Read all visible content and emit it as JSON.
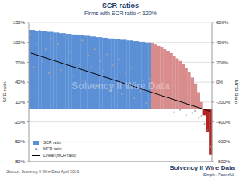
{
  "chart_data": {
    "type": "bar",
    "title": "SCR ratios",
    "subtitle": "Firms with SCR ratio < 120%",
    "y_label": "SCR ratio",
    "y2_label": "MCR Ratio",
    "source": "Source: Solvency II Wire Data April 2016",
    "watermark": "Solvency II Wire Data",
    "logo": {
      "name": "Solvency II Wire Data",
      "tagline": "Simple. Powerful."
    },
    "categories": [
      null,
      null,
      null,
      null,
      null,
      null,
      null,
      null,
      null,
      null,
      null,
      null,
      null,
      null,
      null,
      null,
      null,
      null,
      null,
      null,
      null,
      null,
      null,
      null,
      null,
      null,
      null,
      null,
      null,
      null,
      null,
      null,
      null,
      null,
      null,
      null,
      null,
      null,
      null,
      null,
      null,
      null,
      null,
      null,
      null,
      null,
      null,
      null,
      null,
      null,
      null,
      null,
      null,
      null,
      null,
      null,
      null,
      null,
      null,
      null
    ],
    "ylim": [
      -80,
      130
    ],
    "yticks": [
      {
        "value": -80,
        "label": "-80%"
      },
      {
        "value": -50,
        "label": "-50%"
      },
      {
        "value": -20,
        "label": "-20%"
      },
      {
        "value": 10,
        "label": "10%"
      },
      {
        "value": 40,
        "label": "40%"
      },
      {
        "value": 70,
        "label": "70%"
      },
      {
        "value": 100,
        "label": "100%"
      },
      {
        "value": 130,
        "label": "130%"
      }
    ],
    "y2lim": [
      -800,
      600
    ],
    "y2ticks": [
      {
        "value": -800,
        "label": "-800%"
      },
      {
        "value": -600,
        "label": "-600%"
      },
      {
        "value": -400,
        "label": "-400%"
      },
      {
        "value": -200,
        "label": "-200%"
      },
      {
        "value": 0,
        "label": "0%"
      },
      {
        "value": 200,
        "label": "200%"
      },
      {
        "value": 400,
        "label": "400%"
      },
      {
        "value": 600,
        "label": "600%"
      }
    ],
    "grid": true,
    "legend": "lower left",
    "series": [
      {
        "name": "SCR ratio",
        "type": "bar",
        "color": "#5b8fd6",
        "colors": [
          "#5b8fd6",
          "#5b8fd6",
          "#5b8fd6",
          "#5b8fd6",
          "#5b8fd6",
          "#5b8fd6",
          "#5b8fd6",
          "#5b8fd6",
          "#5b8fd6",
          "#5b8fd6",
          "#5b8fd6",
          "#5b8fd6",
          "#5b8fd6",
          "#5b8fd6",
          "#5b8fd6",
          "#5b8fd6",
          "#5b8fd6",
          "#5b8fd6",
          "#5b8fd6",
          "#5b8fd6",
          "#5b8fd6",
          "#5b8fd6",
          "#5b8fd6",
          "#5b8fd6",
          "#5b8fd6",
          "#5b8fd6",
          "#5b8fd6",
          "#5b8fd6",
          "#5b8fd6",
          "#5b8fd6",
          "#5b8fd6",
          "#5b8fd6",
          "#5b8fd6",
          "#5b8fd6",
          "#5b8fd6",
          "#5b8fd6",
          "#5b8fd6",
          "#5b8fd6",
          "#5b8fd6",
          "#5b8fd6",
          "#d98c8c",
          "#d98c8c",
          "#d98c8c",
          "#d98c8c",
          "#d98c8c",
          "#d98c8c",
          "#d98c8c",
          "#d98c8c",
          "#d98c8c",
          "#d98c8c",
          "#d98c8c",
          "#d98c8c",
          "#d98c8c",
          "#d98c8c",
          "#d98c8c",
          "#d98c8c",
          "#d98c8c",
          "#b22222",
          "#b22222",
          "#b22222"
        ],
        "values": [
          119,
          119,
          118,
          118,
          117,
          117,
          116,
          116,
          115,
          115,
          114,
          114,
          113,
          113,
          112,
          112,
          111,
          111,
          110,
          110,
          109,
          109,
          108,
          108,
          107,
          107,
          106,
          106,
          105,
          105,
          104,
          104,
          103,
          103,
          102,
          102,
          101,
          101,
          100,
          100,
          99,
          97,
          95,
          93,
          90,
          87,
          84,
          80,
          76,
          72,
          67,
          62,
          55,
          47,
          38,
          25,
          10,
          -10,
          -35,
          -70
        ]
      },
      {
        "name": "MCR ratio",
        "type": "scatter",
        "axis": "y2",
        "color": "#a6a6a6",
        "marker": "circle",
        "values": [
          480,
          150,
          390,
          520,
          210,
          330,
          90,
          440,
          260,
          380,
          120,
          470,
          230,
          310,
          60,
          350,
          180,
          420,
          20,
          270,
          150,
          330,
          -40,
          210,
          110,
          280,
          -80,
          170,
          40,
          230,
          -120,
          90,
          -30,
          140,
          -160,
          60,
          -90,
          20,
          -210,
          30,
          -150,
          -60,
          -230,
          -110,
          -190,
          -260,
          -140,
          -300,
          -220,
          -280,
          -180,
          -330,
          -250,
          -310,
          -290,
          -360,
          -340,
          -420,
          -480,
          -650
        ]
      },
      {
        "name": "Linear (MCR ratio)",
        "type": "line",
        "axis": "y2",
        "color": "#000000",
        "line_style": "solid",
        "values": [
          295,
          285,
          275,
          265,
          255,
          245,
          235,
          225,
          215,
          205,
          195,
          185,
          175,
          165,
          155,
          145,
          135,
          125,
          115,
          105,
          95,
          85,
          75,
          65,
          55,
          45,
          35,
          25,
          15,
          5,
          -5,
          -15,
          -25,
          -35,
          -45,
          -55,
          -65,
          -75,
          -85,
          -95,
          -105,
          -115,
          -125,
          -135,
          -145,
          -155,
          -165,
          -175,
          -185,
          -195,
          -205,
          -215,
          -225,
          -235,
          -245,
          -255,
          -265,
          -275,
          -285,
          -295
        ]
      }
    ]
  }
}
